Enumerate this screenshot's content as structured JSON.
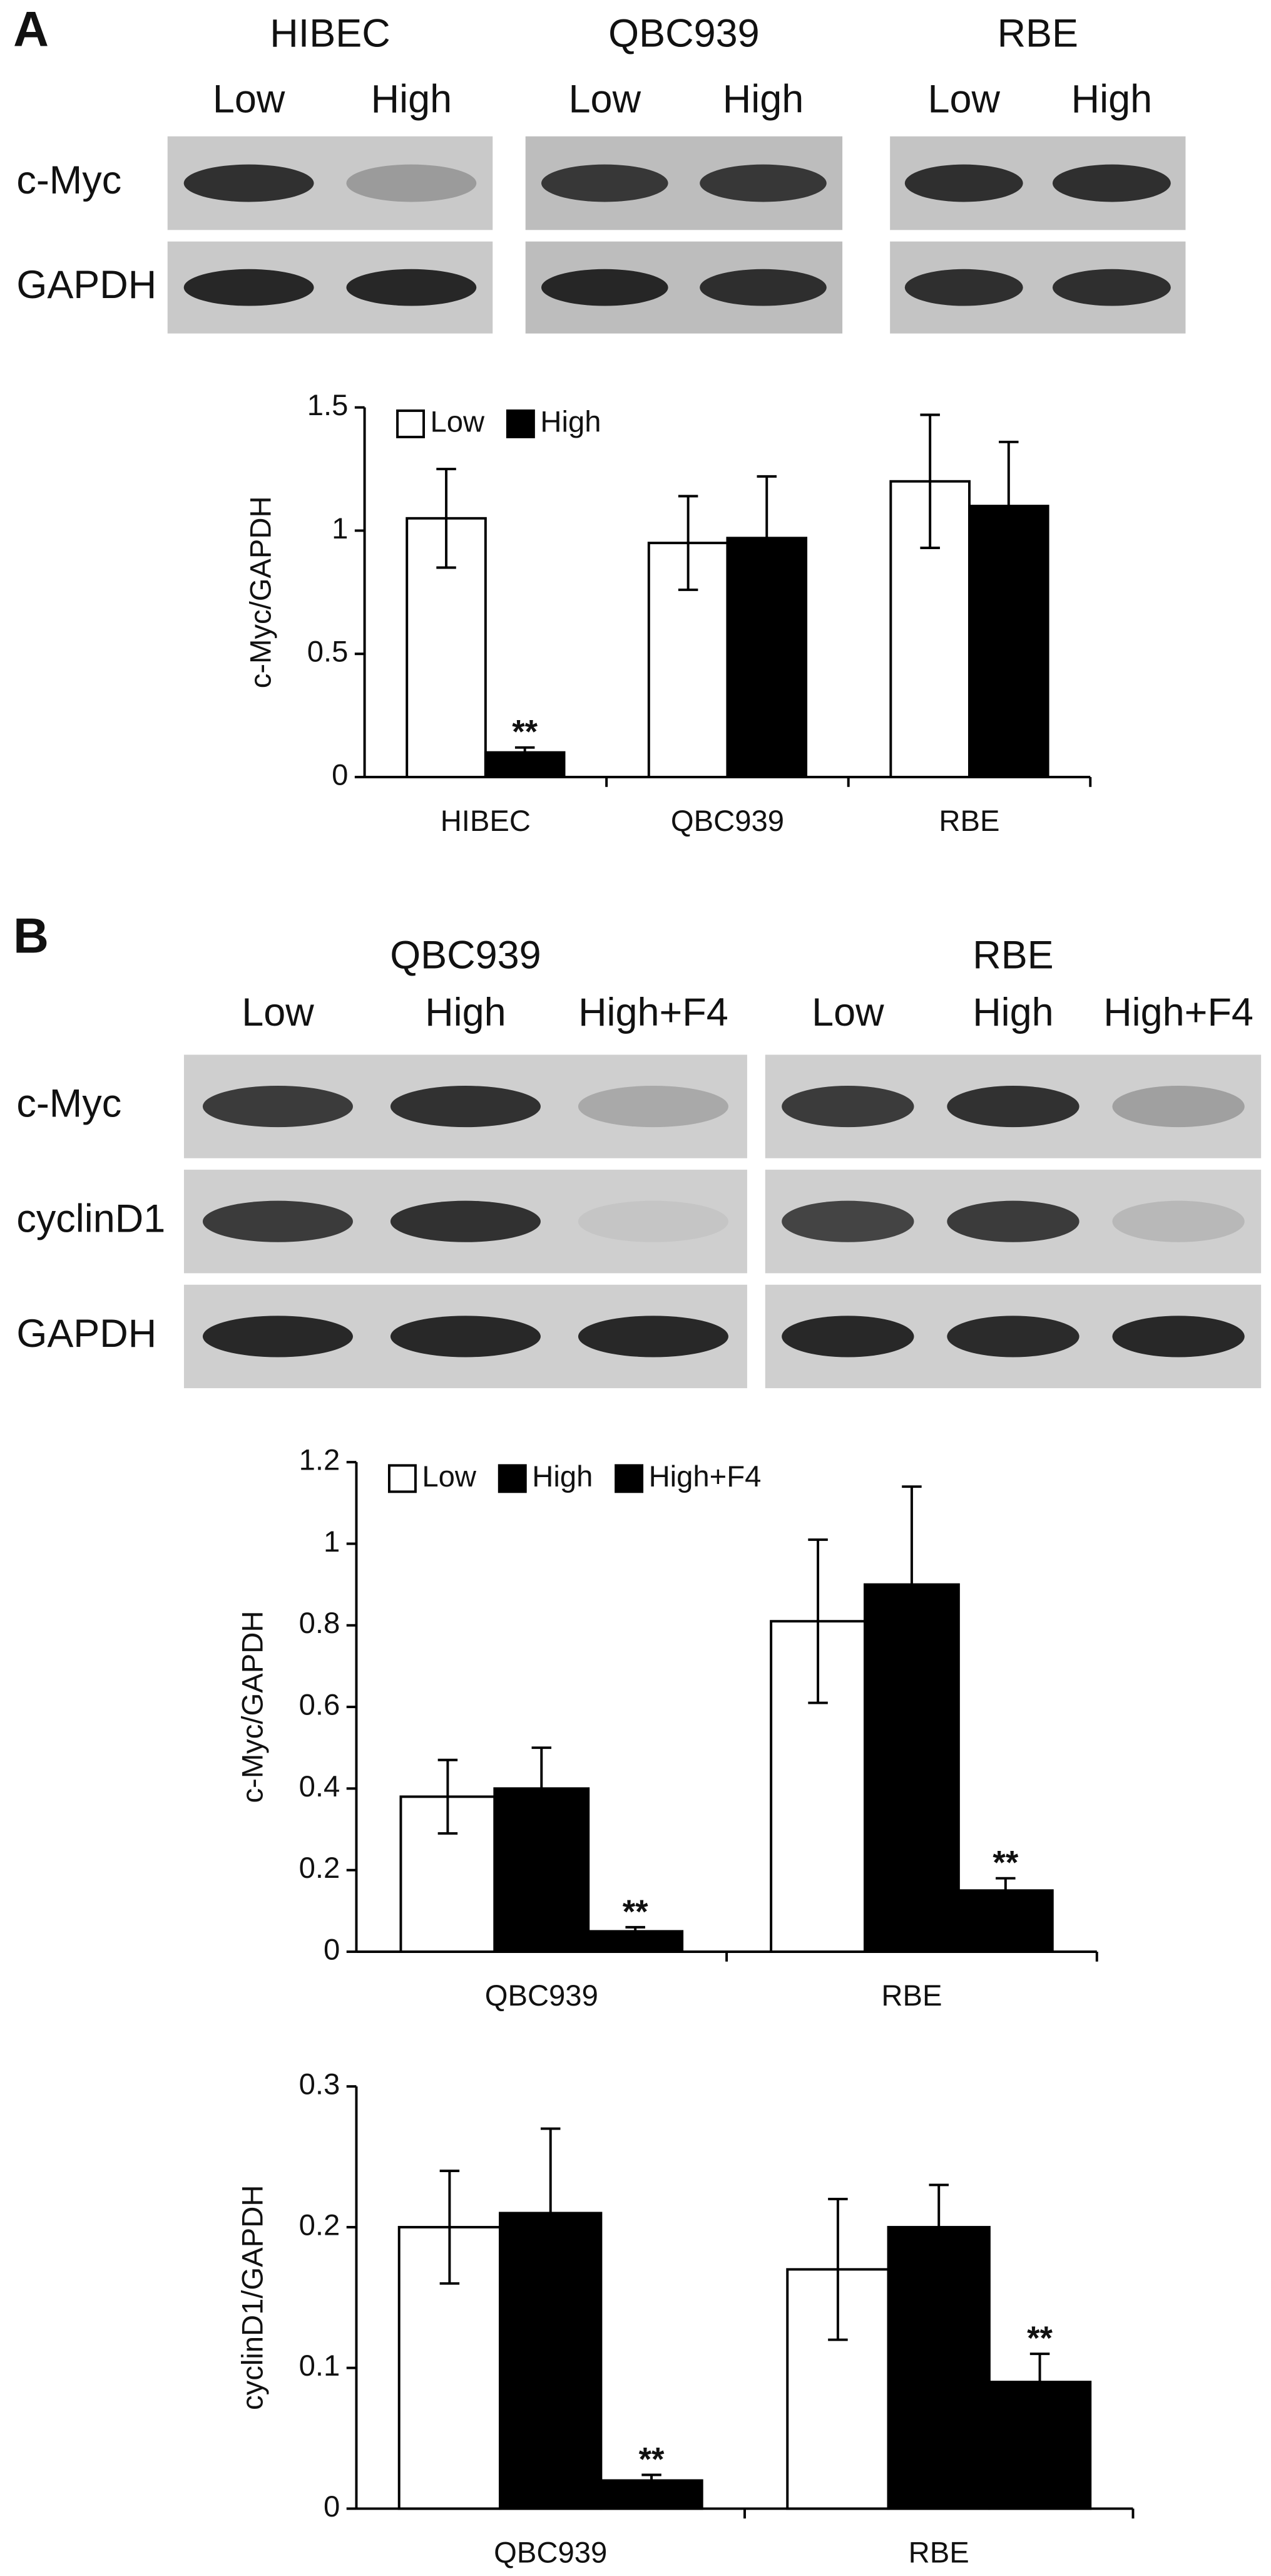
{
  "panel_labels": [
    "A",
    "B"
  ],
  "blots": [
    {
      "groups": [
        {
          "name": "HIBEC",
          "lanes": [
            "Low",
            "High"
          ]
        },
        {
          "name": "QBC939",
          "lanes": [
            "Low",
            "High"
          ]
        },
        {
          "name": "RBE",
          "lanes": [
            "Low",
            "High"
          ]
        }
      ],
      "rows": [
        "c-Myc",
        "GAPDH"
      ]
    },
    {
      "groups": [
        {
          "name": "QBC939",
          "lanes": [
            "Low",
            "High",
            "High+F4"
          ]
        },
        {
          "name": "RBE",
          "lanes": [
            "Low",
            "High",
            "High+F4"
          ]
        }
      ],
      "rows": [
        "c-Myc",
        "cyclinD1",
        "GAPDH"
      ]
    }
  ],
  "chart_data": [
    {
      "type": "bar",
      "y_label": "c-Myc/GAPDH",
      "categories": [
        "HIBEC",
        "QBC939",
        "RBE"
      ],
      "series": [
        {
          "name": "Low",
          "color": "#ffffff",
          "values": [
            1.05,
            0.95,
            1.2
          ],
          "errors": [
            0.2,
            0.19,
            0.27
          ]
        },
        {
          "name": "High",
          "color": "#000000",
          "values": [
            0.1,
            0.97,
            1.1
          ],
          "errors": [
            0.02,
            0.25,
            0.26
          ],
          "annotations": [
            "**",
            null,
            null
          ]
        }
      ],
      "ylim": [
        0,
        1.5
      ],
      "yticks": [
        0,
        0.5,
        1,
        1.5
      ],
      "legend": "upper left"
    },
    {
      "type": "bar",
      "y_label": "c-Myc/GAPDH",
      "categories": [
        "QBC939",
        "RBE"
      ],
      "series": [
        {
          "name": "Low",
          "color": "#ffffff",
          "values": [
            0.38,
            0.81
          ],
          "errors": [
            0.09,
            0.2
          ]
        },
        {
          "name": "High",
          "color": "#000000",
          "values": [
            0.4,
            0.9
          ],
          "errors": [
            0.1,
            0.24
          ]
        },
        {
          "name": "High+F4",
          "color": "#000000",
          "values": [
            0.05,
            0.15
          ],
          "errors": [
            0.01,
            0.03
          ],
          "annotations": [
            "**",
            "**"
          ]
        }
      ],
      "ylim": [
        0,
        1.2
      ],
      "yticks": [
        0,
        0.2,
        0.4,
        0.6,
        0.8,
        1,
        1.2
      ],
      "legend": "upper left"
    },
    {
      "type": "bar",
      "y_label": "cyclinD1/GAPDH",
      "categories": [
        "QBC939",
        "RBE"
      ],
      "series": [
        {
          "name": "Low",
          "color": "#ffffff",
          "values": [
            0.2,
            0.17
          ],
          "errors": [
            0.04,
            0.05
          ]
        },
        {
          "name": "High",
          "color": "#000000",
          "values": [
            0.21,
            0.2
          ],
          "errors": [
            0.06,
            0.03
          ]
        },
        {
          "name": "High+F4",
          "color": "#000000",
          "values": [
            0.02,
            0.09
          ],
          "errors": [
            0.004,
            0.02
          ],
          "annotations": [
            "**",
            "**"
          ]
        }
      ],
      "ylim": [
        0,
        0.3
      ],
      "yticks": [
        0,
        0.1,
        0.2,
        0.3
      ]
    }
  ]
}
